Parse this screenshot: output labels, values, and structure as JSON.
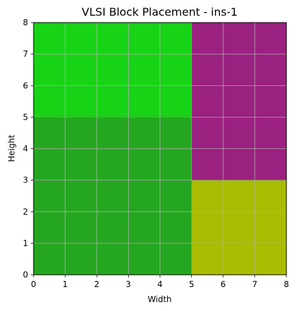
{
  "chart_data": {
    "type": "block-placement",
    "title": "VLSI Block Placement - ins-1",
    "xlabel": "Width",
    "ylabel": "Height",
    "xlim": [
      0,
      8
    ],
    "ylim": [
      0,
      8
    ],
    "xticks": [
      0,
      1,
      2,
      3,
      4,
      5,
      6,
      7,
      8
    ],
    "yticks": [
      0,
      1,
      2,
      3,
      4,
      5,
      6,
      7,
      8
    ],
    "grid": true,
    "blocks": [
      {
        "x": 0,
        "y": 0,
        "w": 5,
        "h": 5,
        "color": "#25a620"
      },
      {
        "x": 0,
        "y": 5,
        "w": 5,
        "h": 3,
        "color": "#17d315"
      },
      {
        "x": 5,
        "y": 3,
        "w": 3,
        "h": 5,
        "color": "#9b2180"
      },
      {
        "x": 5,
        "y": 0,
        "w": 3,
        "h": 3,
        "color": "#a9bd00"
      }
    ]
  }
}
